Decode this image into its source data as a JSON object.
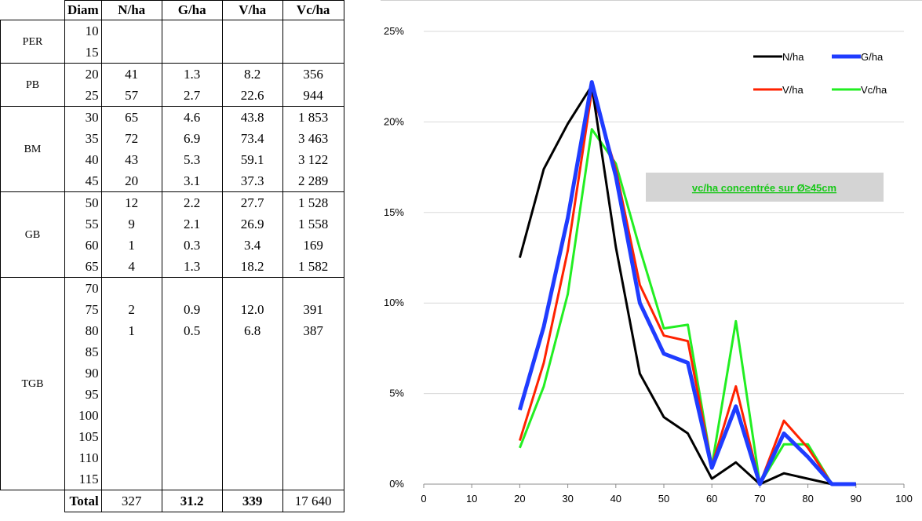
{
  "table": {
    "headers": [
      "Diam",
      "N/ha",
      "G/ha",
      "V/ha",
      "Vc/ha"
    ],
    "groups": [
      {
        "class": "PER",
        "rows": [
          {
            "diam": "10",
            "n": "",
            "g": "",
            "v": "",
            "vc": ""
          },
          {
            "diam": "15",
            "n": "",
            "g": "",
            "v": "",
            "vc": ""
          }
        ]
      },
      {
        "class": "PB",
        "rows": [
          {
            "diam": "20",
            "n": "41",
            "g": "1.3",
            "v": "8.2",
            "vc": "356"
          },
          {
            "diam": "25",
            "n": "57",
            "g": "2.7",
            "v": "22.6",
            "vc": "944"
          }
        ]
      },
      {
        "class": "BM",
        "rows": [
          {
            "diam": "30",
            "n": "65",
            "g": "4.6",
            "v": "43.8",
            "vc": "1 853"
          },
          {
            "diam": "35",
            "n": "72",
            "g": "6.9",
            "v": "73.4",
            "vc": "3 463"
          },
          {
            "diam": "40",
            "n": "43",
            "g": "5.3",
            "v": "59.1",
            "vc": "3 122"
          },
          {
            "diam": "45",
            "n": "20",
            "g": "3.1",
            "v": "37.3",
            "vc": "2 289"
          }
        ]
      },
      {
        "class": "GB",
        "rows": [
          {
            "diam": "50",
            "n": "12",
            "g": "2.2",
            "v": "27.7",
            "vc": "1 528"
          },
          {
            "diam": "55",
            "n": "9",
            "g": "2.1",
            "v": "26.9",
            "vc": "1 558"
          },
          {
            "diam": "60",
            "n": "1",
            "g": "0.3",
            "v": "3.4",
            "vc": "169"
          },
          {
            "diam": "65",
            "n": "4",
            "g": "1.3",
            "v": "18.2",
            "vc": "1 582"
          }
        ]
      },
      {
        "class": "TGB",
        "rows": [
          {
            "diam": "70",
            "n": "",
            "g": "",
            "v": "",
            "vc": ""
          },
          {
            "diam": "75",
            "n": "2",
            "g": "0.9",
            "v": "12.0",
            "vc": "391"
          },
          {
            "diam": "80",
            "n": "1",
            "g": "0.5",
            "v": "6.8",
            "vc": "387"
          },
          {
            "diam": "85",
            "n": "",
            "g": "",
            "v": "",
            "vc": ""
          },
          {
            "diam": "90",
            "n": "",
            "g": "",
            "v": "",
            "vc": ""
          },
          {
            "diam": "95",
            "n": "",
            "g": "",
            "v": "",
            "vc": ""
          },
          {
            "diam": "100",
            "n": "",
            "g": "",
            "v": "",
            "vc": ""
          },
          {
            "diam": "105",
            "n": "",
            "g": "",
            "v": "",
            "vc": ""
          },
          {
            "diam": "110",
            "n": "",
            "g": "",
            "v": "",
            "vc": ""
          },
          {
            "diam": "115",
            "n": "",
            "g": "",
            "v": "",
            "vc": ""
          }
        ]
      }
    ],
    "total": {
      "label": "Total",
      "n": "327",
      "g": "31.2",
      "v": "339",
      "vc": "17 640"
    }
  },
  "chart_data": {
    "type": "line",
    "xlim": [
      0,
      100
    ],
    "ylim": [
      0,
      25
    ],
    "x_ticks": [
      "0",
      "10",
      "20",
      "30",
      "40",
      "50",
      "60",
      "70",
      "80",
      "90",
      "100"
    ],
    "y_ticks": [
      "0%",
      "5%",
      "10%",
      "15%",
      "20%",
      "25%"
    ],
    "grid": "horizontal",
    "legend_position": "top-right",
    "annotation": "vc/ha concentrée sur  Ø≥45cm",
    "series": [
      {
        "name": "N/ha",
        "color": "#000000",
        "x": [
          20,
          25,
          30,
          35,
          40,
          45,
          50,
          55,
          60,
          65,
          70,
          75,
          80,
          85,
          90
        ],
        "y": [
          12.5,
          17.4,
          19.9,
          22.0,
          13.1,
          6.1,
          3.7,
          2.8,
          0.3,
          1.2,
          0,
          0.6,
          0.3,
          0,
          0
        ]
      },
      {
        "name": "G/ha",
        "color": "#1f3cff",
        "x": [
          20,
          25,
          30,
          35,
          40,
          45,
          50,
          55,
          60,
          65,
          70,
          75,
          80,
          85,
          90
        ],
        "y": [
          4.1,
          8.7,
          14.7,
          22.2,
          17.0,
          10.0,
          7.2,
          6.7,
          0.9,
          4.3,
          0,
          2.8,
          1.5,
          0,
          0
        ]
      },
      {
        "name": "V/ha",
        "color": "#ff2200",
        "x": [
          20,
          25,
          30,
          35,
          40,
          45,
          50,
          55,
          60,
          65,
          70,
          75,
          80,
          85,
          90
        ],
        "y": [
          2.4,
          6.7,
          12.9,
          21.7,
          17.4,
          11.0,
          8.2,
          7.9,
          1.0,
          5.4,
          0,
          3.5,
          2.0,
          0,
          0
        ]
      },
      {
        "name": "Vc/ha",
        "color": "#22ee22",
        "x": [
          20,
          25,
          30,
          35,
          40,
          45,
          50,
          55,
          60,
          65,
          70,
          75,
          80,
          85,
          90
        ],
        "y": [
          2.0,
          5.4,
          10.5,
          19.6,
          17.7,
          13.0,
          8.6,
          8.8,
          1.0,
          9.0,
          0,
          2.2,
          2.2,
          0,
          0
        ]
      }
    ]
  }
}
